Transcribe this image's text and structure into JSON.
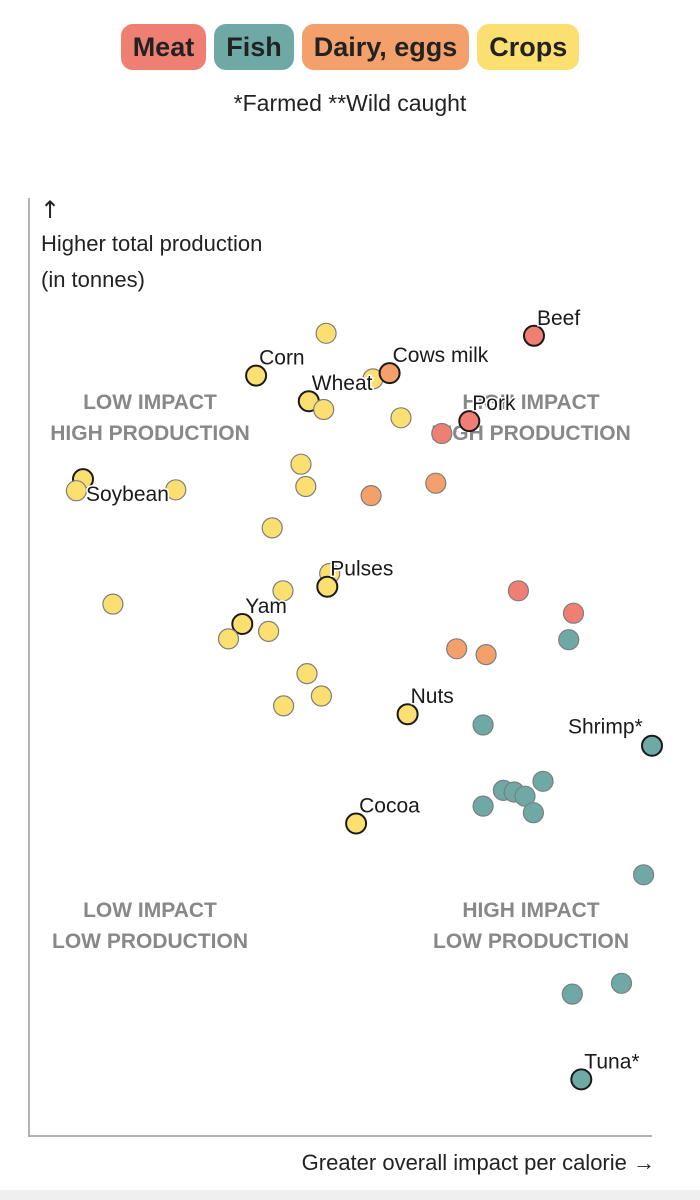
{
  "legend": {
    "items": [
      {
        "label": "Meat",
        "color": "#f07f73"
      },
      {
        "label": "Fish",
        "color": "#6fa9a5"
      },
      {
        "label": "Dairy, eggs",
        "color": "#f4a06a"
      },
      {
        "label": "Crops",
        "color": "#fbe071"
      }
    ],
    "note": "*Farmed **Wild caught"
  },
  "chart_data": {
    "type": "scatter",
    "title": "",
    "xlabel": "Greater overall impact per calorie →",
    "ylabel": "Higher total production (in tonnes)",
    "ylabel_arrow": "↑",
    "ylabel_lines": [
      "Higher total production",
      "(in tonnes)"
    ],
    "xlim": [
      0,
      100
    ],
    "ylim": [
      0,
      100
    ],
    "grid": false,
    "quadrants": [
      {
        "id": "tl",
        "lines": [
          "LOW IMPACT",
          "HIGH PRODUCTION"
        ]
      },
      {
        "id": "tr",
        "lines": [
          "HIGH IMPACT",
          "HIGH PRODUCTION"
        ]
      },
      {
        "id": "bl",
        "lines": [
          "LOW IMPACT",
          "LOW PRODUCTION"
        ]
      },
      {
        "id": "br",
        "lines": [
          "HIGH IMPACT",
          "LOW PRODUCTION"
        ]
      }
    ],
    "series": [
      {
        "name": "Crops",
        "color": "#fbe071",
        "points": [
          {
            "x": 45.6,
            "y": 93.8
          },
          {
            "x": 33.9,
            "y": 88.7,
            "label": "Corn",
            "highlight": true
          },
          {
            "x": 42.7,
            "y": 85.6,
            "label": "Wheat",
            "highlight": true
          },
          {
            "x": 45.2,
            "y": 84.6
          },
          {
            "x": 53.4,
            "y": 88.3
          },
          {
            "x": 58.1,
            "y": 83.6
          },
          {
            "x": 41.4,
            "y": 78.0
          },
          {
            "x": 42.2,
            "y": 75.3
          },
          {
            "x": 5.0,
            "y": 76.2,
            "label": "Soybean",
            "highlight": true
          },
          {
            "x": 3.9,
            "y": 74.8
          },
          {
            "x": 20.5,
            "y": 74.9
          },
          {
            "x": 36.6,
            "y": 70.3
          },
          {
            "x": 46.2,
            "y": 64.8
          },
          {
            "x": 45.8,
            "y": 63.2,
            "label": "Pulses",
            "highlight": true
          },
          {
            "x": 38.4,
            "y": 62.7
          },
          {
            "x": 10.0,
            "y": 61.1
          },
          {
            "x": 31.6,
            "y": 58.7,
            "label": "Yam",
            "highlight": true
          },
          {
            "x": 36.0,
            "y": 57.8
          },
          {
            "x": 29.3,
            "y": 56.9
          },
          {
            "x": 42.4,
            "y": 52.7
          },
          {
            "x": 44.8,
            "y": 50.0
          },
          {
            "x": 38.5,
            "y": 48.8
          },
          {
            "x": 59.2,
            "y": 47.8,
            "label": "Nuts",
            "highlight": true
          },
          {
            "x": 50.6,
            "y": 34.6,
            "label": "Cocoa",
            "highlight": true
          }
        ]
      },
      {
        "name": "Dairy, eggs",
        "color": "#f4a06a",
        "points": [
          {
            "x": 56.2,
            "y": 89.0,
            "label": "Cows milk",
            "highlight": true
          },
          {
            "x": 53.1,
            "y": 74.2
          },
          {
            "x": 63.9,
            "y": 75.7
          },
          {
            "x": 67.4,
            "y": 55.7
          },
          {
            "x": 72.3,
            "y": 55.0
          }
        ]
      },
      {
        "name": "Meat",
        "color": "#f07f73",
        "points": [
          {
            "x": 80.3,
            "y": 93.5,
            "label": "Beef",
            "highlight": true
          },
          {
            "x": 69.5,
            "y": 83.2,
            "label": "Pork",
            "highlight": true
          },
          {
            "x": 64.9,
            "y": 81.7
          },
          {
            "x": 77.7,
            "y": 62.7
          },
          {
            "x": 86.9,
            "y": 60.0
          }
        ]
      },
      {
        "name": "Fish",
        "color": "#6fa9a5",
        "points": [
          {
            "x": 86.1,
            "y": 56.8
          },
          {
            "x": 71.8,
            "y": 46.5
          },
          {
            "x": 100.0,
            "y": 44.0,
            "label": "Shrimp*",
            "highlight": true
          },
          {
            "x": 81.8,
            "y": 39.7
          },
          {
            "x": 75.2,
            "y": 38.6
          },
          {
            "x": 77.0,
            "y": 38.4
          },
          {
            "x": 78.8,
            "y": 37.9
          },
          {
            "x": 71.8,
            "y": 36.7
          },
          {
            "x": 80.2,
            "y": 35.9
          },
          {
            "x": 98.6,
            "y": 28.4
          },
          {
            "x": 94.9,
            "y": 15.3
          },
          {
            "x": 86.7,
            "y": 14.0
          },
          {
            "x": 88.2,
            "y": 3.7,
            "label": "Tuna*",
            "highlight": true
          }
        ]
      }
    ]
  }
}
